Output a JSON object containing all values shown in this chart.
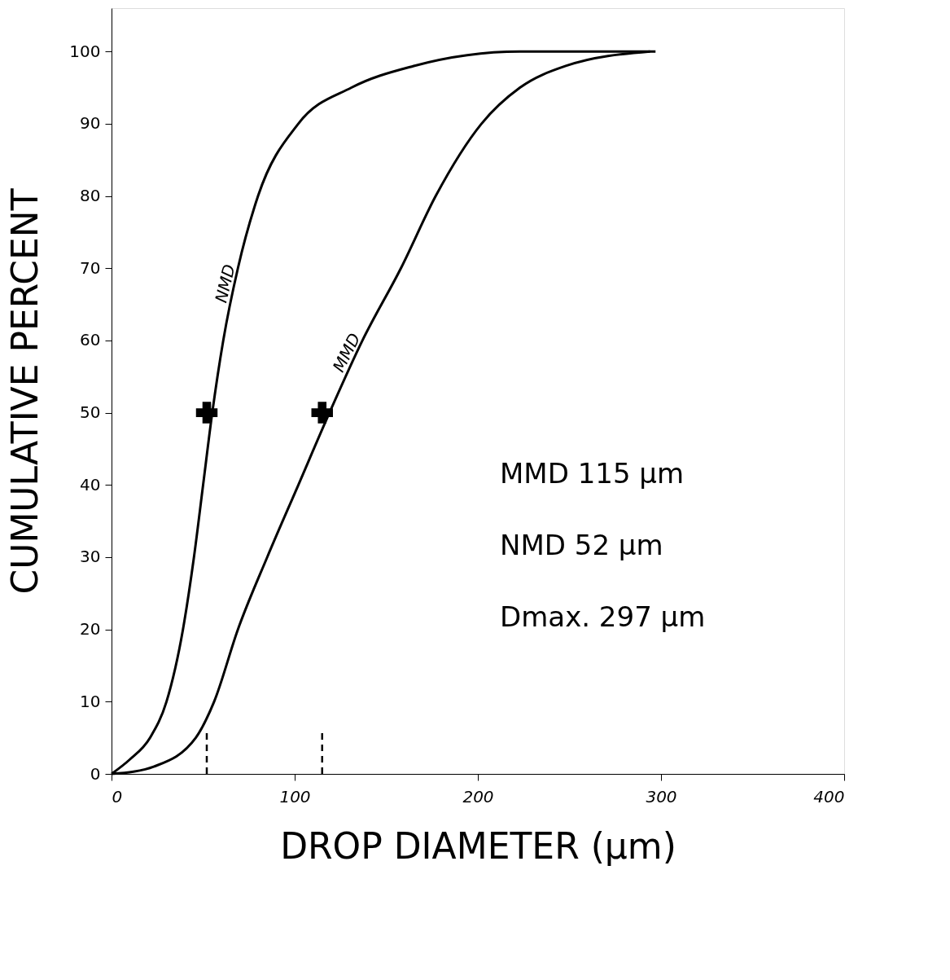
{
  "chart_data": {
    "type": "line",
    "xlabel": "DROP DIAMETER (µm)",
    "ylabel": "CUMULATIVE PERCENT",
    "xlim": [
      0,
      400
    ],
    "xticks": [
      0,
      100,
      200,
      300,
      400
    ],
    "ylim": [
      0,
      106
    ],
    "yticks": [
      0,
      10,
      20,
      30,
      40,
      50,
      60,
      70,
      80,
      90,
      100
    ],
    "grid": false,
    "legend": false,
    "line_style": "solid",
    "marker": "none",
    "series": [
      {
        "name": "NMD",
        "color": "#000000",
        "x": [
          0,
          10,
          21,
          30,
          39,
          45,
          50,
          55,
          61,
          69,
          80,
          102,
          131,
          165,
          223,
          297
        ],
        "values": [
          0,
          2,
          5,
          10,
          20,
          30,
          40,
          50,
          60,
          70,
          80,
          90,
          95,
          98,
          100,
          100
        ]
      },
      {
        "name": "MMD",
        "color": "#000000",
        "x": [
          0,
          12,
          23,
          46,
          56,
          69,
          85,
          102,
          119,
          137,
          158,
          177,
          202,
          223,
          248,
          294
        ],
        "values": [
          0,
          0.3,
          1,
          5,
          10,
          20,
          30,
          40,
          50,
          60,
          70,
          80,
          90,
          95,
          98,
          100
        ]
      },
      {
        "type": "scatter",
        "marker": "cross",
        "color": "#000000",
        "x": [
          52,
          115
        ],
        "values": [
          50,
          50
        ]
      },
      {
        "type": "line",
        "line_style": "dashed",
        "color": "#000000",
        "x": [
          52,
          52
        ],
        "values": [
          0,
          6
        ]
      },
      {
        "type": "line",
        "line_style": "dashed",
        "color": "#000000",
        "x": [
          115,
          115
        ],
        "values": [
          0,
          6
        ]
      }
    ],
    "annotations": [
      "MMD   115 µm",
      "NMD   52 µm",
      "Dmax.  297 µm"
    ]
  }
}
